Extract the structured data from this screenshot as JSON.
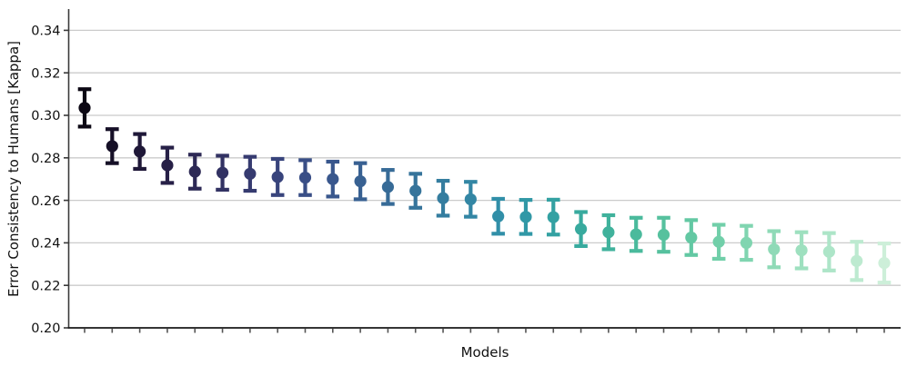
{
  "chart_data": {
    "type": "scatter",
    "subtype": "points-with-error-bars",
    "title": "",
    "xlabel": "Models",
    "ylabel": "Error Consistency to Humans [Kappa]",
    "ylim": [
      0.2,
      0.35
    ],
    "yticks": [
      0.2,
      0.22,
      0.24,
      0.26,
      0.28,
      0.3,
      0.32,
      0.34
    ],
    "grid": "horizontal-gridlines-on",
    "legend": "none",
    "x_axis_note": "30 unlabeled tick marks, one per model, sorted descending by kappa",
    "colormap": "mako-like gradient, dark navy (best model) to pale green (worst model)",
    "axis_colors": {
      "gridline": "#cbcbcb",
      "spine": "#3a3a3a",
      "bottom_spine": "#1a1a1a",
      "tick": "#555555",
      "tick_label": "#111111"
    },
    "points": [
      {
        "model_rank": 1,
        "kappa": 0.3035,
        "err": 0.0088,
        "color": "#0c0814"
      },
      {
        "model_rank": 2,
        "kappa": 0.2855,
        "err": 0.008,
        "color": "#161027"
      },
      {
        "model_rank": 3,
        "kappa": 0.283,
        "err": 0.0082,
        "color": "#1f1838"
      },
      {
        "model_rank": 4,
        "kappa": 0.2765,
        "err": 0.0083,
        "color": "#272047"
      },
      {
        "model_rank": 5,
        "kappa": 0.2735,
        "err": 0.008,
        "color": "#2d2955"
      },
      {
        "model_rank": 6,
        "kappa": 0.273,
        "err": 0.008,
        "color": "#323263"
      },
      {
        "model_rank": 7,
        "kappa": 0.2725,
        "err": 0.008,
        "color": "#363b70"
      },
      {
        "model_rank": 8,
        "kappa": 0.271,
        "err": 0.0085,
        "color": "#38447c"
      },
      {
        "model_rank": 9,
        "kappa": 0.2707,
        "err": 0.0082,
        "color": "#394e86"
      },
      {
        "model_rank": 10,
        "kappa": 0.27,
        "err": 0.0082,
        "color": "#39578d"
      },
      {
        "model_rank": 11,
        "kappa": 0.269,
        "err": 0.0085,
        "color": "#386192"
      },
      {
        "model_rank": 12,
        "kappa": 0.2663,
        "err": 0.008,
        "color": "#376b97"
      },
      {
        "model_rank": 13,
        "kappa": 0.2645,
        "err": 0.008,
        "color": "#36749b"
      },
      {
        "model_rank": 14,
        "kappa": 0.261,
        "err": 0.0082,
        "color": "#347d9f"
      },
      {
        "model_rank": 15,
        "kappa": 0.2605,
        "err": 0.0082,
        "color": "#3386a4"
      },
      {
        "model_rank": 16,
        "kappa": 0.2525,
        "err": 0.0082,
        "color": "#318fa8"
      },
      {
        "model_rank": 17,
        "kappa": 0.2522,
        "err": 0.008,
        "color": "#3198a6"
      },
      {
        "model_rank": 18,
        "kappa": 0.2521,
        "err": 0.0082,
        "color": "#33a1a2"
      },
      {
        "model_rank": 19,
        "kappa": 0.2465,
        "err": 0.008,
        "color": "#38aa9e"
      },
      {
        "model_rank": 20,
        "kappa": 0.245,
        "err": 0.008,
        "color": "#40b29c"
      },
      {
        "model_rank": 21,
        "kappa": 0.244,
        "err": 0.0078,
        "color": "#4aba9c"
      },
      {
        "model_rank": 22,
        "kappa": 0.2438,
        "err": 0.008,
        "color": "#56c19e"
      },
      {
        "model_rank": 23,
        "kappa": 0.2425,
        "err": 0.0082,
        "color": "#63c8a3"
      },
      {
        "model_rank": 24,
        "kappa": 0.2405,
        "err": 0.008,
        "color": "#71cfa9"
      },
      {
        "model_rank": 25,
        "kappa": 0.24,
        "err": 0.008,
        "color": "#80d5b0"
      },
      {
        "model_rank": 26,
        "kappa": 0.237,
        "err": 0.0085,
        "color": "#8fdab7"
      },
      {
        "model_rank": 27,
        "kappa": 0.2365,
        "err": 0.0085,
        "color": "#9ee0bf"
      },
      {
        "model_rank": 28,
        "kappa": 0.2358,
        "err": 0.0088,
        "color": "#ade5c8"
      },
      {
        "model_rank": 29,
        "kappa": 0.2315,
        "err": 0.009,
        "color": "#bdead0"
      },
      {
        "model_rank": 30,
        "kappa": 0.2305,
        "err": 0.0092,
        "color": "#cdefd9"
      }
    ]
  }
}
